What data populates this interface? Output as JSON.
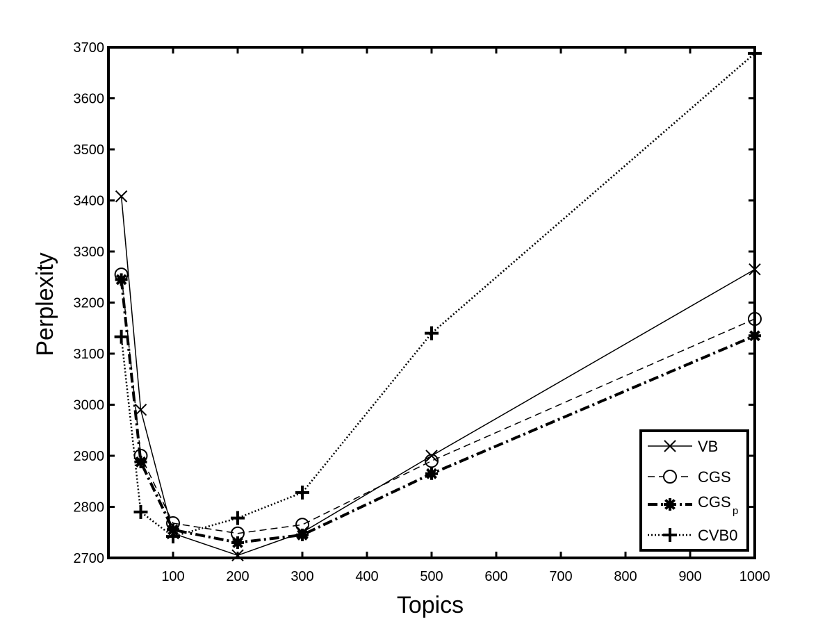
{
  "chart_data": {
    "type": "line",
    "title": "",
    "xlabel": "Topics",
    "ylabel": "Perplexity",
    "xlim": [
      0,
      1000
    ],
    "ylim": [
      2700,
      3700
    ],
    "xticks": [
      100,
      200,
      300,
      400,
      500,
      600,
      700,
      800,
      900,
      1000
    ],
    "yticks": [
      2700,
      2800,
      2900,
      3000,
      3100,
      3200,
      3300,
      3400,
      3500,
      3600,
      3700
    ],
    "grid": false,
    "legend_position": "bottom-right",
    "x": [
      20,
      50,
      100,
      200,
      300,
      500,
      1000
    ],
    "series": [
      {
        "name": "VB",
        "legend_main": "VB",
        "legend_sub": "",
        "values": [
          3408,
          2990,
          2748,
          2705,
          2750,
          2900,
          3265
        ],
        "marker": "x",
        "line_style": "solid"
      },
      {
        "name": "CGS",
        "legend_main": "CGS",
        "legend_sub": "",
        "values": [
          3255,
          2900,
          2768,
          2748,
          2765,
          2890,
          3168
        ],
        "marker": "circle",
        "line_style": "dashed"
      },
      {
        "name": "CGS_p",
        "legend_main": "CGS",
        "legend_sub": "p",
        "values": [
          3245,
          2888,
          2755,
          2730,
          2745,
          2865,
          3135
        ],
        "marker": "asterisk",
        "line_style": "dash-dot"
      },
      {
        "name": "CVB0",
        "legend_main": "CVB0",
        "legend_sub": "",
        "values": [
          3133,
          2790,
          2742,
          2778,
          2828,
          3140,
          3688
        ],
        "marker": "plus",
        "line_style": "dotted"
      }
    ]
  }
}
